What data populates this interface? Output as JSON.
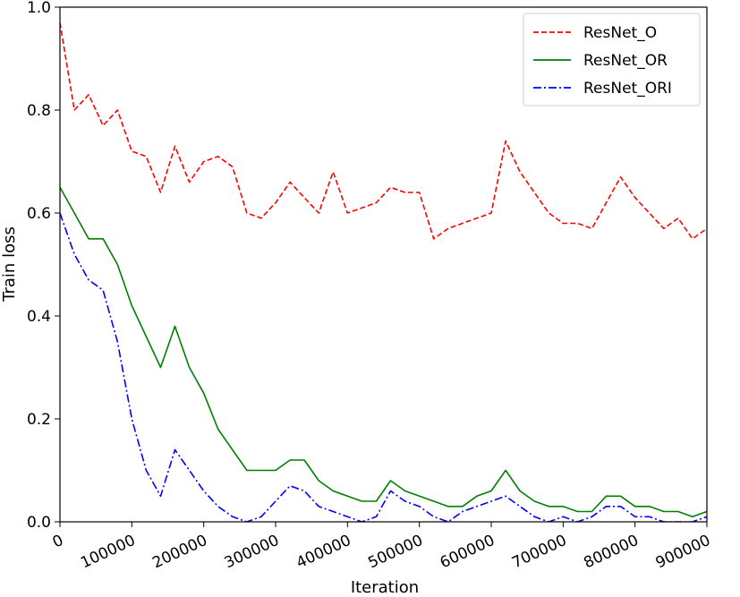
{
  "chart_data": {
    "type": "line",
    "xlabel": "Iteration",
    "ylabel": "Train loss",
    "xlim": [
      0,
      900000
    ],
    "ylim": [
      0,
      1.0
    ],
    "xticks": [
      0,
      100000,
      200000,
      300000,
      400000,
      500000,
      600000,
      700000,
      800000,
      900000
    ],
    "xtick_labels": [
      "0",
      "100000",
      "200000",
      "300000",
      "400000",
      "500000",
      "600000",
      "700000",
      "800000",
      "900000"
    ],
    "yticks": [
      0,
      0.2,
      0.4,
      0.6,
      0.8,
      1.0
    ],
    "ytick_labels": [
      "0.0",
      "0.2",
      "0.4",
      "0.6",
      "0.8",
      "1.0"
    ],
    "grid": false,
    "legend_position": "top-right",
    "series": [
      {
        "name": "ResNet_O",
        "color": "#ff0000",
        "style": "dashed",
        "x": [
          0,
          20000,
          40000,
          60000,
          80000,
          100000,
          120000,
          140000,
          160000,
          180000,
          200000,
          220000,
          240000,
          260000,
          280000,
          300000,
          320000,
          340000,
          360000,
          380000,
          400000,
          420000,
          440000,
          460000,
          480000,
          500000,
          520000,
          540000,
          560000,
          580000,
          600000,
          620000,
          640000,
          660000,
          680000,
          700000,
          720000,
          740000,
          760000,
          780000,
          800000,
          820000,
          840000,
          860000,
          880000,
          900000
        ],
        "y": [
          0.97,
          0.8,
          0.83,
          0.77,
          0.8,
          0.72,
          0.71,
          0.64,
          0.73,
          0.66,
          0.7,
          0.71,
          0.69,
          0.6,
          0.59,
          0.62,
          0.66,
          0.63,
          0.6,
          0.68,
          0.6,
          0.61,
          0.62,
          0.65,
          0.64,
          0.64,
          0.55,
          0.57,
          0.58,
          0.59,
          0.6,
          0.74,
          0.68,
          0.64,
          0.6,
          0.58,
          0.58,
          0.57,
          0.62,
          0.67,
          0.63,
          0.6,
          0.57,
          0.59,
          0.55,
          0.57
        ]
      },
      {
        "name": "ResNet_OR",
        "color": "#007f00",
        "style": "solid",
        "x": [
          0,
          20000,
          40000,
          60000,
          80000,
          100000,
          120000,
          140000,
          160000,
          180000,
          200000,
          220000,
          240000,
          260000,
          280000,
          300000,
          320000,
          340000,
          360000,
          380000,
          400000,
          420000,
          440000,
          460000,
          480000,
          500000,
          520000,
          540000,
          560000,
          580000,
          600000,
          620000,
          640000,
          660000,
          680000,
          700000,
          720000,
          740000,
          760000,
          780000,
          800000,
          820000,
          840000,
          860000,
          880000,
          900000
        ],
        "y": [
          0.65,
          0.6,
          0.55,
          0.55,
          0.5,
          0.42,
          0.36,
          0.3,
          0.38,
          0.3,
          0.25,
          0.18,
          0.14,
          0.1,
          0.1,
          0.1,
          0.12,
          0.12,
          0.08,
          0.06,
          0.05,
          0.04,
          0.04,
          0.08,
          0.06,
          0.05,
          0.04,
          0.03,
          0.03,
          0.05,
          0.06,
          0.1,
          0.06,
          0.04,
          0.03,
          0.03,
          0.02,
          0.02,
          0.05,
          0.05,
          0.03,
          0.03,
          0.02,
          0.02,
          0.01,
          0.02
        ]
      },
      {
        "name": "ResNet_ORI",
        "color": "#0000ff",
        "style": "dashdot",
        "x": [
          0,
          20000,
          40000,
          60000,
          80000,
          100000,
          120000,
          140000,
          160000,
          180000,
          200000,
          220000,
          240000,
          260000,
          280000,
          300000,
          320000,
          340000,
          360000,
          380000,
          400000,
          420000,
          440000,
          460000,
          480000,
          500000,
          520000,
          540000,
          560000,
          580000,
          600000,
          620000,
          640000,
          660000,
          680000,
          700000,
          720000,
          740000,
          760000,
          780000,
          800000,
          820000,
          840000,
          860000,
          880000,
          900000
        ],
        "y": [
          0.6,
          0.52,
          0.47,
          0.45,
          0.35,
          0.2,
          0.1,
          0.05,
          0.14,
          0.1,
          0.06,
          0.03,
          0.01,
          0.0,
          0.01,
          0.04,
          0.07,
          0.06,
          0.03,
          0.02,
          0.01,
          0.0,
          0.01,
          0.06,
          0.04,
          0.03,
          0.01,
          0.0,
          0.02,
          0.03,
          0.04,
          0.05,
          0.03,
          0.01,
          0.0,
          0.01,
          0.0,
          0.01,
          0.03,
          0.03,
          0.01,
          0.01,
          0.0,
          0.0,
          0.0,
          0.01
        ]
      }
    ]
  }
}
